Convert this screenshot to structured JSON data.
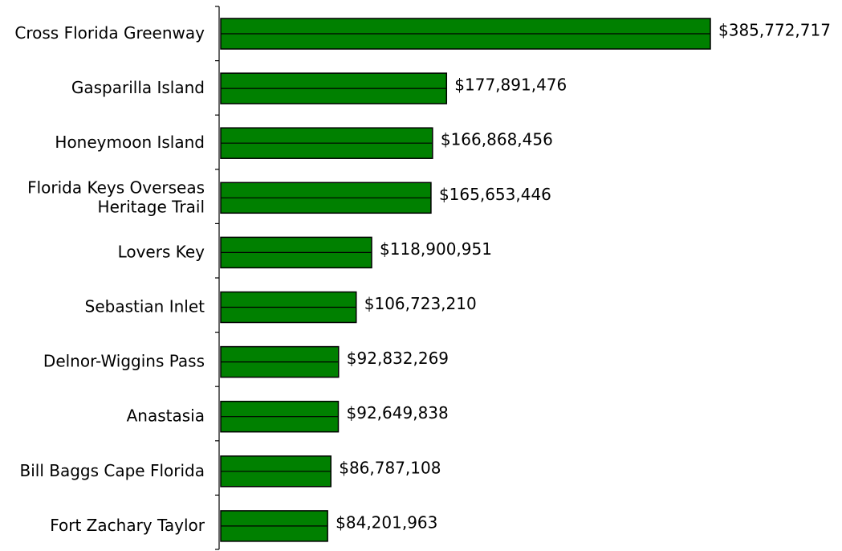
{
  "chart_data": {
    "type": "bar",
    "orientation": "horizontal",
    "categories": [
      "Cross Florida Greenway",
      "Gasparilla Island",
      "Honeymoon Island",
      "Florida Keys Overseas Heritage Trail",
      "Lovers Key",
      "Sebastian Inlet",
      "Delnor-Wiggins Pass",
      "Anastasia",
      "Bill Baggs Cape Florida",
      "Fort Zachary Taylor"
    ],
    "category_lines": [
      [
        "Cross Florida Greenway"
      ],
      [
        "Gasparilla Island"
      ],
      [
        "Honeymoon Island"
      ],
      [
        "Florida Keys Overseas",
        "Heritage Trail"
      ],
      [
        "Lovers Key"
      ],
      [
        "Sebastian Inlet"
      ],
      [
        "Delnor-Wiggins Pass"
      ],
      [
        "Anastasia"
      ],
      [
        "Bill Baggs Cape Florida"
      ],
      [
        "Fort Zachary Taylor"
      ]
    ],
    "values": [
      385772717,
      177891476,
      166868456,
      165653446,
      118900951,
      106723210,
      92832269,
      92649838,
      86787108,
      84201963
    ],
    "data_labels": [
      "$385,772,717",
      "$177,891,476",
      "$166,868,456",
      "$165,653,446",
      "$118,900,951",
      "$106,723,210",
      "$92,832,269",
      "$92,649,838",
      "$86,787,108",
      "$84,201,963"
    ],
    "title": "",
    "xlabel": "",
    "ylabel": "",
    "xlim": [
      0,
      385772717
    ],
    "grid": false,
    "legend": "none",
    "bar_color": "#008000",
    "bar_border_color": "#000000"
  }
}
